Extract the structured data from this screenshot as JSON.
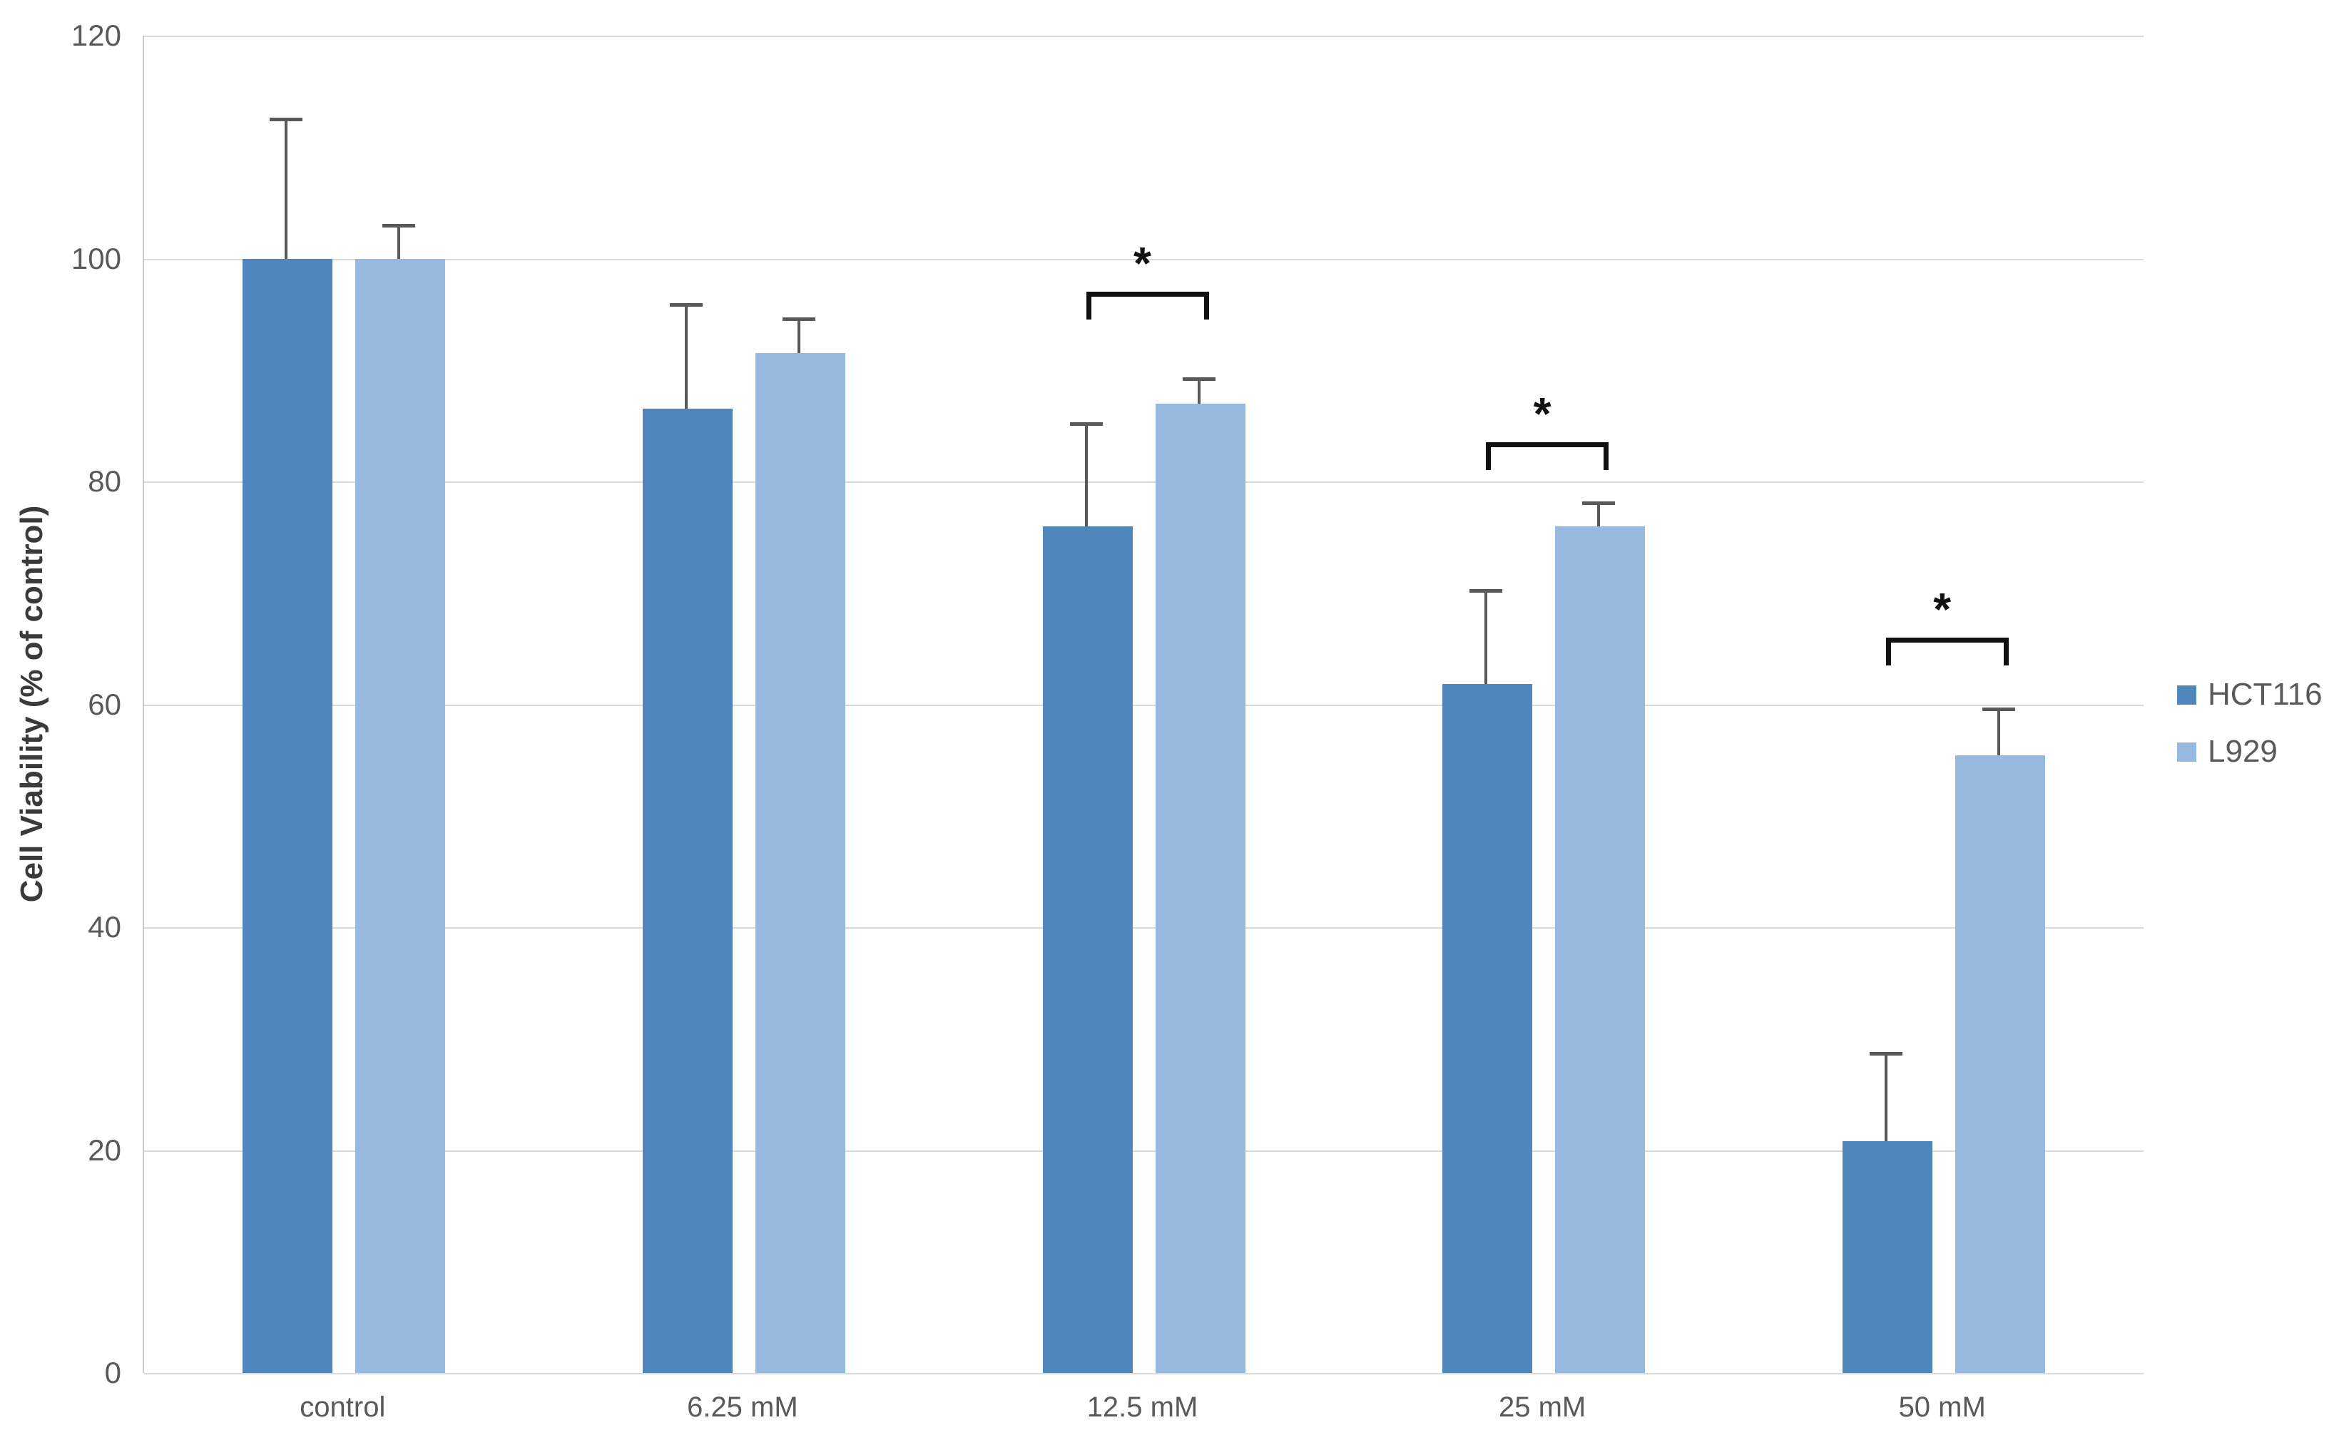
{
  "chart_data": {
    "type": "bar",
    "title": "",
    "xlabel": "",
    "ylabel": "Cell Viability (% of control)",
    "ylim": [
      0,
      120
    ],
    "yticks": [
      0,
      20,
      40,
      60,
      80,
      100,
      120
    ],
    "grid": true,
    "legend_position": "right",
    "categories": [
      "control",
      "6.25 mM",
      "12.5 mM",
      "25 mM",
      "50 mM"
    ],
    "series": [
      {
        "name": "HCT116",
        "color": "#4f86bb",
        "values": [
          100,
          86.5,
          76,
          61.8,
          20.8
        ],
        "errors_up": [
          12.5,
          9.4,
          9.2,
          8.4,
          7.9
        ]
      },
      {
        "name": "L929",
        "color": "#97b9e0",
        "values": [
          100,
          91.5,
          87,
          76,
          55.4
        ],
        "errors_up": [
          3.0,
          3.1,
          2.2,
          2.1,
          4.2
        ]
      }
    ],
    "significance_annotations": [
      {
        "category": "12.5 mM",
        "group_index": 2,
        "label": "*",
        "bracket_top_value": 97
      },
      {
        "category": "25 mM",
        "group_index": 3,
        "label": "*",
        "bracket_top_value": 83.5
      },
      {
        "category": "50 mM",
        "group_index": 4,
        "label": "*",
        "bracket_top_value": 66
      }
    ],
    "colors": {
      "series_hct116": "#4f86bb",
      "series_l929": "#97b9e0",
      "gridline": "#d9d9d9",
      "axis_line": "#c9c9c9",
      "error_bar": "#595959",
      "tick_text": "#595959",
      "axis_title_text": "#3a3a3a",
      "annotation": "#111111",
      "background": "#ffffff"
    }
  }
}
